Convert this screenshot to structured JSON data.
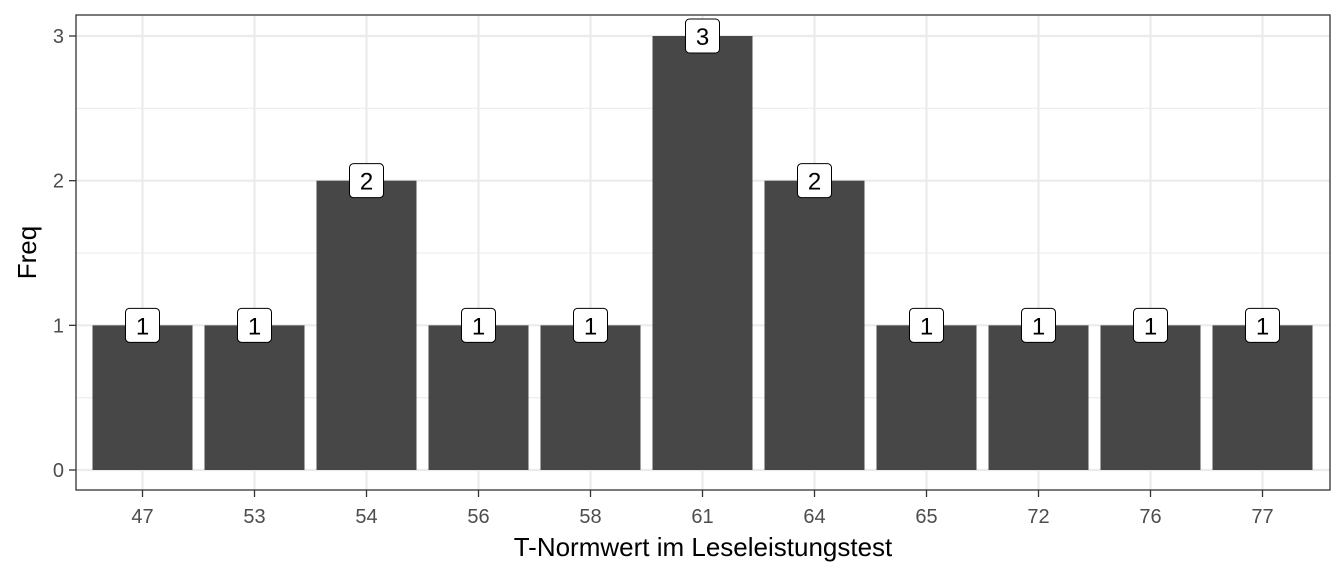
{
  "chart_data": {
    "type": "bar",
    "title": "",
    "xlabel": "T-Normwert im Leseleistungstest",
    "ylabel": "Freq",
    "categories": [
      "47",
      "53",
      "54",
      "56",
      "58",
      "61",
      "64",
      "65",
      "72",
      "76",
      "77"
    ],
    "values": [
      1,
      1,
      2,
      1,
      1,
      3,
      2,
      1,
      1,
      1,
      1
    ],
    "data_labels": [
      "1",
      "1",
      "2",
      "1",
      "1",
      "3",
      "2",
      "1",
      "1",
      "1",
      "1"
    ],
    "y_ticks": [
      "0",
      "1",
      "2",
      "3"
    ],
    "ylim": [
      0,
      3
    ],
    "grid": true,
    "bar_color": "#474747",
    "grid_color": "#ebebeb",
    "theme": "bw"
  }
}
